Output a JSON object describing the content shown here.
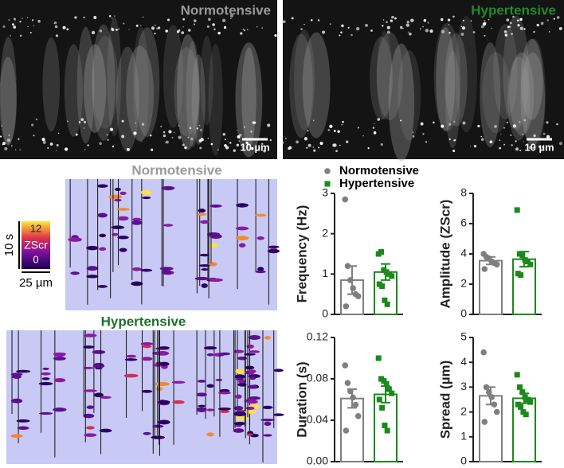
{
  "panel_images": {
    "left_label": "Normotensive",
    "right_label": "Hypertensive",
    "scale_bar_left": "10 µm",
    "scale_bar_right": "10 µm"
  },
  "kymographs": {
    "top_title": "Normotensive",
    "bottom_title": "Hypertensive",
    "colorbar": {
      "ticks": [
        0,
        12
      ],
      "label": "ZScr"
    },
    "time_scale": "10 s",
    "space_scale": "25 µm"
  },
  "legend": [
    {
      "name": "Normotensive",
      "color": "#7f7f7f",
      "marker": "circle"
    },
    {
      "name": "Hypertensive",
      "color": "#1a8a1a",
      "marker": "square"
    }
  ],
  "chart_data": [
    {
      "type": "bar",
      "ylabel": "Frequency (Hz)",
      "ylim": [
        0,
        3
      ],
      "yticks": [
        0,
        1,
        2,
        3
      ],
      "series": [
        {
          "color": "#7f7f7f",
          "marker": "circle",
          "values": [
            0.85
          ],
          "errors": [
            0.35
          ],
          "points": [
            2.85,
            1.2,
            0.85,
            0.65,
            0.5,
            0.45,
            0.2
          ]
        },
        {
          "color": "#1a8a1a",
          "marker": "square",
          "values": [
            1.05
          ],
          "errors": [
            0.2
          ],
          "points": [
            1.5,
            1.55,
            1.1,
            1.05,
            1.0,
            0.95,
            0.75,
            0.7,
            0.35,
            0.25
          ]
        }
      ]
    },
    {
      "type": "bar",
      "ylabel": "Amplitude (ZScr)",
      "ylim": [
        0,
        8
      ],
      "yticks": [
        0,
        2,
        4,
        6,
        8
      ],
      "series": [
        {
          "color": "#7f7f7f",
          "marker": "circle",
          "values": [
            3.55
          ],
          "errors": [
            0.25
          ],
          "points": [
            4.0,
            3.8,
            3.7,
            3.5,
            3.4,
            3.3,
            3.0
          ]
        },
        {
          "color": "#1a8a1a",
          "marker": "square",
          "values": [
            3.65
          ],
          "errors": [
            0.5
          ],
          "points": [
            6.9,
            4.0,
            3.9,
            3.6,
            3.5,
            3.3,
            2.7,
            2.6
          ]
        }
      ]
    },
    {
      "type": "bar",
      "ylabel": "Duration (s)",
      "ylim": [
        0,
        0.12
      ],
      "yticks": [
        {
          "value": 0,
          "label": "0.00"
        },
        0.04,
        0.08,
        0.12
      ],
      "series": [
        {
          "color": "#7f7f7f",
          "marker": "circle",
          "values": [
            0.061
          ],
          "errors": [
            0.009
          ],
          "points": [
            0.093,
            0.076,
            0.068,
            0.062,
            0.055,
            0.044,
            0.03
          ]
        },
        {
          "color": "#1a8a1a",
          "marker": "square",
          "values": [
            0.065
          ],
          "errors": [
            0.008
          ],
          "points": [
            0.1,
            0.08,
            0.078,
            0.075,
            0.07,
            0.066,
            0.06,
            0.052,
            0.035,
            0.03
          ]
        }
      ]
    },
    {
      "type": "bar",
      "ylabel": "Spread (µm)",
      "ylim": [
        0,
        5
      ],
      "yticks": [
        0,
        1,
        2,
        3,
        4,
        5
      ],
      "series": [
        {
          "color": "#7f7f7f",
          "marker": "circle",
          "values": [
            2.65
          ],
          "errors": [
            0.35
          ],
          "points": [
            4.4,
            3.0,
            2.8,
            2.6,
            2.3,
            2.0,
            1.6
          ]
        },
        {
          "color": "#1a8a1a",
          "marker": "square",
          "values": [
            2.55
          ],
          "errors": [
            0.2
          ],
          "points": [
            3.5,
            3.0,
            2.8,
            2.6,
            2.5,
            2.4,
            2.3,
            2.2,
            2.0,
            1.9
          ]
        }
      ]
    }
  ]
}
